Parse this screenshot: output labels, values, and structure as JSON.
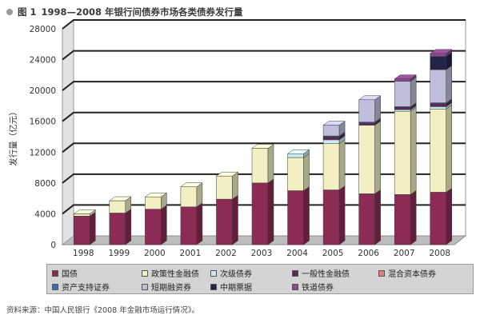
{
  "title": {
    "figure_label": "图 1",
    "text": "1998—2008 年银行间债券市场各类债券发行量"
  },
  "source_note": "资料来源：中国人民银行《2008 年金融市场运行情况》。",
  "colors": {
    "guozhai": "#8c2c55",
    "zhengce": "#f2f0c2",
    "ciji": "#c8ecef",
    "yiban": "#5a2a56",
    "hunhe": "#e57d74",
    "zichan": "#3a6fb8",
    "duanqi": "#c0bedc",
    "zhongqi": "#24234a",
    "tiedao": "#8b4a8c"
  },
  "chart_data": {
    "type": "bar",
    "stacked": true,
    "style": "3d",
    "title": "",
    "xlabel": "",
    "ylabel": "发行量（亿元）",
    "ylim": [
      0,
      28000
    ],
    "yticks": [
      0,
      4000,
      8000,
      12000,
      16000,
      20000,
      24000,
      28000
    ],
    "ytick_labels": [
      "0",
      "4000",
      "8000",
      "12000",
      "16000",
      "20000",
      "24000",
      "28000"
    ],
    "grid": true,
    "legend_position": "bottom",
    "categories": [
      "1998",
      "1999",
      "2000",
      "2001",
      "2002",
      "2003",
      "2004",
      "2005",
      "2006",
      "2007",
      "2008"
    ],
    "series": [
      {
        "name": "国债",
        "color_key": "guozhai",
        "values": [
          3700,
          4100,
          4600,
          4900,
          5900,
          8000,
          7000,
          7100,
          6600,
          6500,
          6800
        ]
      },
      {
        "name": "政策性金融债",
        "color_key": "zhengce",
        "values": [
          300,
          1600,
          1600,
          2600,
          3000,
          4500,
          4300,
          6000,
          8900,
          10800,
          10800
        ]
      },
      {
        "name": "次级债券",
        "color_key": "ciji",
        "values": [
          0,
          0,
          0,
          0,
          0,
          0,
          500,
          500,
          0,
          200,
          300
        ]
      },
      {
        "name": "一般性金融债",
        "color_key": "yiban",
        "values": [
          0,
          0,
          0,
          0,
          0,
          0,
          0,
          400,
          300,
          300,
          400
        ]
      },
      {
        "name": "混合资本债券",
        "color_key": "hunhe",
        "values": [
          0,
          0,
          0,
          0,
          0,
          0,
          0,
          0,
          0,
          0,
          0
        ]
      },
      {
        "name": "资产支持证券",
        "color_key": "zichan",
        "values": [
          0,
          0,
          0,
          0,
          0,
          0,
          0,
          100,
          100,
          100,
          100
        ]
      },
      {
        "name": "短期融资券",
        "color_key": "duanqi",
        "values": [
          0,
          0,
          0,
          0,
          0,
          0,
          0,
          1400,
          2900,
          3300,
          4300
        ]
      },
      {
        "name": "中期票据",
        "color_key": "zhongqi",
        "values": [
          0,
          0,
          0,
          0,
          0,
          0,
          0,
          0,
          0,
          0,
          1700
        ]
      },
      {
        "name": "铁道债券",
        "color_key": "tiedao",
        "values": [
          0,
          0,
          0,
          0,
          0,
          0,
          0,
          0,
          0,
          300,
          400
        ]
      }
    ]
  }
}
